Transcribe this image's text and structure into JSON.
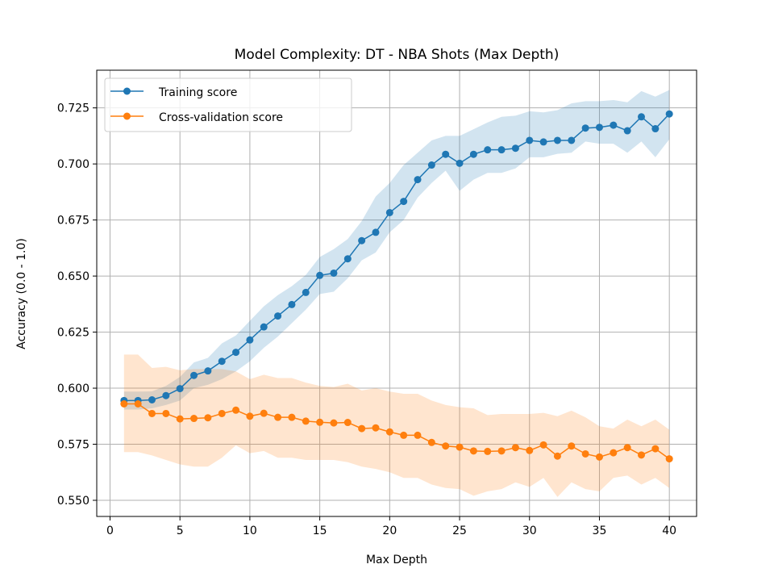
{
  "chart_data": {
    "type": "line",
    "title": "Model Complexity: DT - NBA Shots (Max Depth)",
    "xlabel": "Max Depth",
    "ylabel": "Accuracy (0.0 - 1.0)",
    "xlim": [
      -0.95,
      41.95
    ],
    "ylim": [
      0.5428,
      0.7418
    ],
    "xticks": [
      0,
      5,
      10,
      15,
      20,
      25,
      30,
      35,
      40
    ],
    "yticks": [
      0.55,
      0.575,
      0.6,
      0.625,
      0.65,
      0.675,
      0.7,
      0.725
    ],
    "ytick_labels": [
      "0.550",
      "0.575",
      "0.600",
      "0.625",
      "0.650",
      "0.675",
      "0.700",
      "0.725"
    ],
    "grid": true,
    "legend_position": "top-left",
    "x": [
      1,
      2,
      3,
      4,
      5,
      6,
      7,
      8,
      9,
      10,
      11,
      12,
      13,
      14,
      15,
      16,
      17,
      18,
      19,
      20,
      21,
      22,
      23,
      24,
      25,
      26,
      27,
      28,
      29,
      30,
      31,
      32,
      33,
      34,
      35,
      36,
      37,
      38,
      39,
      40
    ],
    "series": [
      {
        "name": "Training score",
        "color": "#1f77b4",
        "band_color": "#1f77b4",
        "values": [
          0.5945,
          0.5945,
          0.5948,
          0.5967,
          0.5998,
          0.6057,
          0.6077,
          0.612,
          0.616,
          0.6215,
          0.6273,
          0.6322,
          0.6373,
          0.6427,
          0.6503,
          0.6513,
          0.6577,
          0.6658,
          0.6695,
          0.6783,
          0.6833,
          0.693,
          0.6995,
          0.7043,
          0.7003,
          0.7043,
          0.7063,
          0.7063,
          0.707,
          0.7105,
          0.7098,
          0.7105,
          0.7105,
          0.716,
          0.7163,
          0.7173,
          0.7148,
          0.721,
          0.7157,
          0.7223
        ],
        "lower": [
          0.5905,
          0.5905,
          0.591,
          0.5925,
          0.5945,
          0.6,
          0.6015,
          0.604,
          0.6075,
          0.612,
          0.618,
          0.623,
          0.629,
          0.635,
          0.642,
          0.643,
          0.649,
          0.657,
          0.6605,
          0.6695,
          0.675,
          0.685,
          0.6915,
          0.697,
          0.688,
          0.693,
          0.696,
          0.696,
          0.698,
          0.703,
          0.703,
          0.7045,
          0.705,
          0.71,
          0.709,
          0.709,
          0.705,
          0.71,
          0.703,
          0.711
        ],
        "upper": [
          0.5985,
          0.5985,
          0.5986,
          0.601,
          0.605,
          0.6115,
          0.6135,
          0.62,
          0.6235,
          0.63,
          0.6365,
          0.6415,
          0.6455,
          0.6505,
          0.6585,
          0.662,
          0.6665,
          0.6745,
          0.6855,
          0.6915,
          0.6995,
          0.705,
          0.7105,
          0.7125,
          0.7125,
          0.7155,
          0.7185,
          0.721,
          0.7215,
          0.7235,
          0.723,
          0.724,
          0.727,
          0.728,
          0.728,
          0.7285,
          0.7275,
          0.7325,
          0.73,
          0.733
        ]
      },
      {
        "name": "Cross-validation score",
        "color": "#ff7f0e",
        "band_color": "#ff7f0e",
        "values": [
          0.593,
          0.593,
          0.5887,
          0.5887,
          0.5863,
          0.5865,
          0.5868,
          0.5887,
          0.5902,
          0.5875,
          0.5888,
          0.587,
          0.587,
          0.5853,
          0.5848,
          0.5845,
          0.5847,
          0.582,
          0.5823,
          0.5805,
          0.579,
          0.579,
          0.5758,
          0.5742,
          0.5737,
          0.572,
          0.5718,
          0.572,
          0.5735,
          0.5722,
          0.5747,
          0.5697,
          0.5742,
          0.5707,
          0.5693,
          0.5712,
          0.5735,
          0.5702,
          0.573,
          0.5685
        ],
        "lower": [
          0.5715,
          0.5715,
          0.57,
          0.568,
          0.566,
          0.565,
          0.565,
          0.569,
          0.5745,
          0.571,
          0.572,
          0.569,
          0.569,
          0.568,
          0.568,
          0.568,
          0.567,
          0.565,
          0.564,
          0.5625,
          0.56,
          0.56,
          0.557,
          0.5555,
          0.555,
          0.552,
          0.554,
          0.555,
          0.558,
          0.556,
          0.56,
          0.5515,
          0.558,
          0.555,
          0.554,
          0.56,
          0.561,
          0.557,
          0.56,
          0.5555
        ],
        "upper": [
          0.615,
          0.615,
          0.609,
          0.6095,
          0.608,
          0.6085,
          0.6085,
          0.6085,
          0.6075,
          0.604,
          0.606,
          0.6045,
          0.6045,
          0.6025,
          0.601,
          0.6005,
          0.602,
          0.599,
          0.6,
          0.5985,
          0.5975,
          0.5975,
          0.5945,
          0.5925,
          0.5915,
          0.591,
          0.588,
          0.5885,
          0.5885,
          0.5885,
          0.589,
          0.5875,
          0.59,
          0.587,
          0.583,
          0.582,
          0.586,
          0.583,
          0.586,
          0.5815
        ]
      }
    ]
  }
}
